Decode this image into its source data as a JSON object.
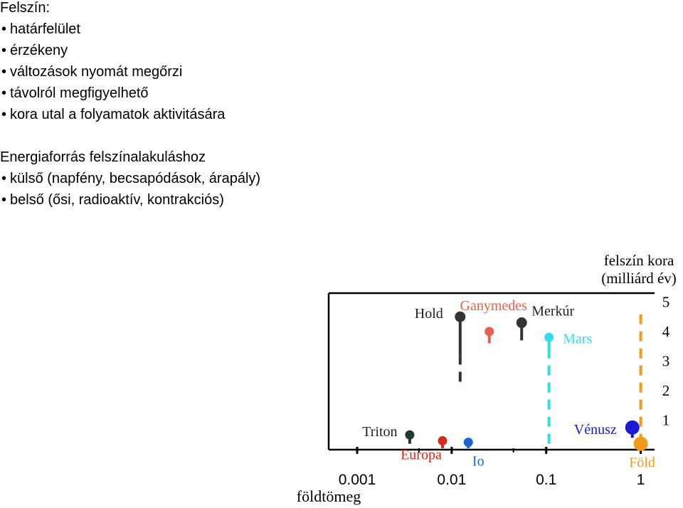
{
  "text": {
    "surface_heading": "Felszín:",
    "surface_bullets": [
      "határfelület",
      "érzékeny",
      "változások nyomát megőrzi",
      "távolról megfigyelhető",
      "kora utal a folyamatok aktivitására"
    ],
    "energy_heading": "Energiaforrás felszínalakuláshoz",
    "energy_bullets": [
      "külső (napfény, becsapódások, árapály)",
      "belső (ősi, radioaktív, kontrakciós)"
    ],
    "bullet_char": "•"
  },
  "chart_data": {
    "type": "scatter",
    "x_scale": "log",
    "xlim": [
      0.0005,
      1.4
    ],
    "ylim": [
      0,
      5.3
    ],
    "xlabel": "földtömeg",
    "x_ticks": [
      0.001,
      0.01,
      0.1,
      1
    ],
    "x_tick_labels": [
      "0.001",
      "0.01",
      "0.1",
      "1"
    ],
    "right_axis_title_1": "felszín kora",
    "right_axis_title_2": "(milliárd év)",
    "y_ticks": [
      1,
      2,
      3,
      4,
      5
    ],
    "y_tick_labels": [
      "1",
      "2",
      "3",
      "4",
      "5"
    ],
    "points": [
      {
        "name": "Hold",
        "mass": 0.0123,
        "age": 4.5,
        "range_solid": [
          3.2,
          4.5
        ],
        "range_dashed": [
          2.3,
          3.2
        ],
        "color": "#333333"
      },
      {
        "name": "Ganymedes",
        "mass": 0.025,
        "age": 4.0,
        "range_solid": [
          3.6,
          4.0
        ],
        "range_dashed": null,
        "color": "#e8614a"
      },
      {
        "name": "Merkúr",
        "mass": 0.055,
        "age": 4.3,
        "range_solid": [
          3.7,
          4.3
        ],
        "range_dashed": null,
        "color": "#333333"
      },
      {
        "name": "Mars",
        "mass": 0.107,
        "age": 3.8,
        "range_solid": [
          3.3,
          3.8
        ],
        "range_dashed": [
          0.2,
          3.3
        ],
        "color": "#33dde8"
      },
      {
        "name": "Triton",
        "mass": 0.0036,
        "age": 0.5,
        "range_solid": [
          0.2,
          0.5
        ],
        "range_dashed": null,
        "color": "#1f3a33"
      },
      {
        "name": "Europa",
        "mass": 0.008,
        "age": 0.3,
        "range_solid": [
          0.05,
          0.3
        ],
        "range_dashed": null,
        "color": "#d42b1c"
      },
      {
        "name": "Io",
        "mass": 0.015,
        "age": 0.25,
        "range_solid": [
          0.05,
          0.25
        ],
        "range_dashed": null,
        "color": "#1e63d6"
      },
      {
        "name": "Vénusz",
        "mass": 0.815,
        "age": 0.75,
        "range_solid": [
          0.4,
          0.75
        ],
        "range_dashed": null,
        "color": "#1a1ad6"
      },
      {
        "name": "Föld",
        "mass": 1.0,
        "age": 0.2,
        "range_solid": [
          0.0,
          0.2
        ],
        "range_dashed": [
          0.2,
          4.6
        ],
        "color": "#f39a1a"
      }
    ],
    "grid": false,
    "legend": "none"
  }
}
